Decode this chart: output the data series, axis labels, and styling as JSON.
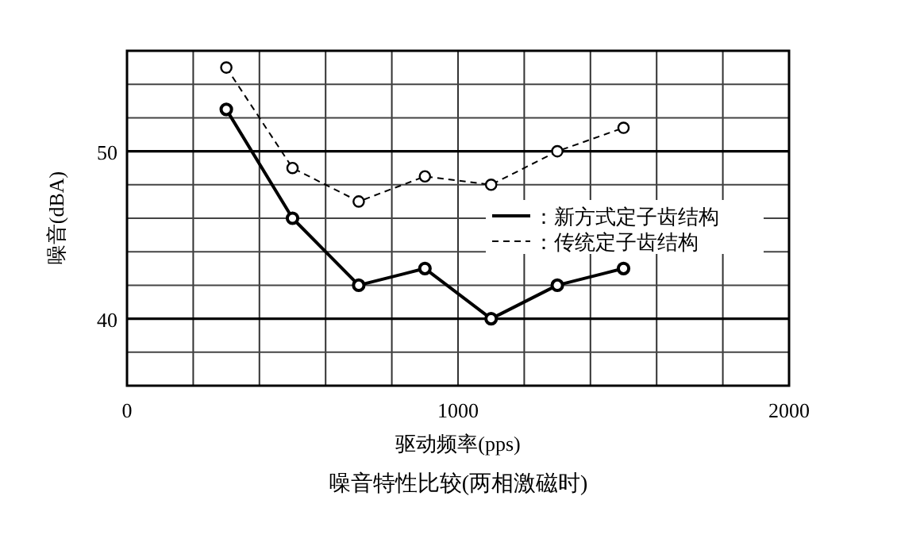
{
  "chart_data": {
    "type": "line",
    "title": "噪音特性比较(两相激磁时)",
    "xlabel": "驱动频率(pps)",
    "ylabel": "噪音(dBA)",
    "x": [
      300,
      500,
      700,
      900,
      1100,
      1300,
      1500
    ],
    "series": [
      {
        "name": "：新方式定子齿结构",
        "color": "#000000",
        "line_style": "solid",
        "values": [
          52.5,
          46,
          42,
          43,
          40,
          42,
          43
        ]
      },
      {
        "name": "：传统定子齿结构",
        "color": "#000000",
        "line_style": "dashed",
        "values": [
          55,
          49,
          47,
          48.5,
          48,
          50,
          51.4
        ]
      }
    ],
    "xlim": [
      0,
      2000
    ],
    "ylim": [
      36,
      56
    ],
    "xticks": [
      0,
      {
        "value": 200,
        "label": null
      },
      {
        "value": 400,
        "label": null
      },
      {
        "value": 600,
        "label": null
      },
      {
        "value": 800,
        "label": null
      },
      1000,
      {
        "value": 1200,
        "label": null
      },
      {
        "value": 1400,
        "label": null
      },
      {
        "value": 1600,
        "label": null
      },
      {
        "value": 1800,
        "label": null
      },
      2000
    ],
    "yticks": [
      {
        "value": 36,
        "label": null
      },
      {
        "value": 38,
        "label": null
      },
      40,
      {
        "value": 42,
        "label": null
      },
      {
        "value": 44,
        "label": null
      },
      {
        "value": 46,
        "label": null
      },
      {
        "value": 48,
        "label": null
      },
      50,
      {
        "value": 52,
        "label": null
      },
      {
        "value": 54,
        "label": null
      },
      {
        "value": 56,
        "label": null
      }
    ],
    "grid": true,
    "legend": "right",
    "marker": "circle"
  }
}
